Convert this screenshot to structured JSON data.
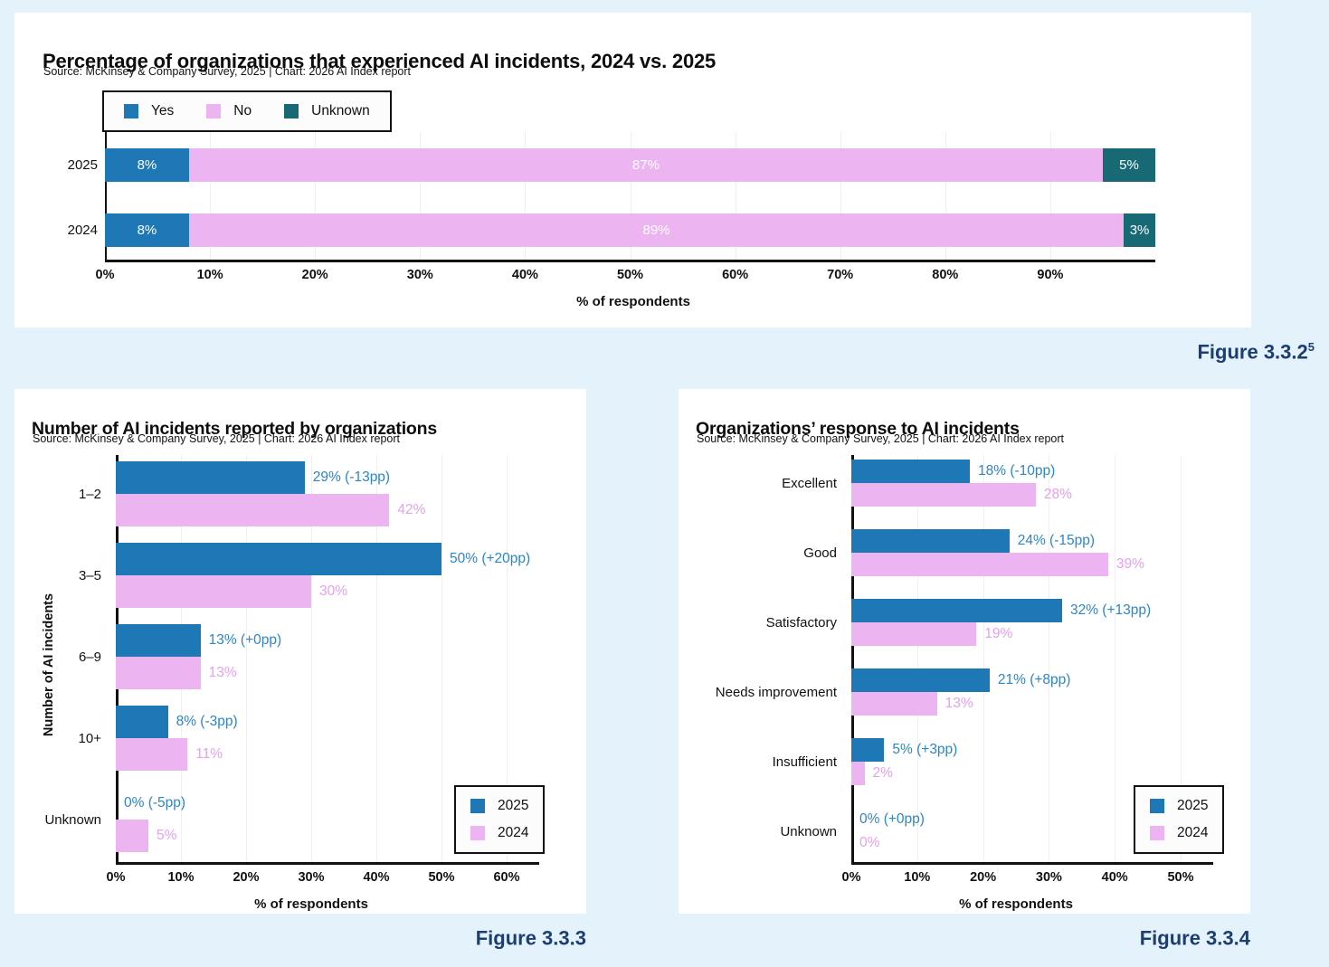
{
  "colors": {
    "blue": "#1d78b5",
    "pink": "#ecb5f2",
    "teal": "#176a74",
    "blue_label": "#2d86c7",
    "pink_label": "#e79ff0",
    "caption_navy": "#1c3e70",
    "page_background": "#e4f2fc"
  },
  "figure_captions": [
    {
      "label": "Figure 3.3.2",
      "superscript": "5"
    },
    {
      "label": "Figure 3.3.3",
      "superscript": ""
    },
    {
      "label": "Figure 3.3.4",
      "superscript": ""
    }
  ],
  "chart_data": [
    {
      "type": "bar",
      "variant": "stacked-horizontal",
      "title": "Percentage of organizations that experienced AI incidents, 2024 vs. 2025",
      "source": "Source: McKinsey & Company Survey, 2025 | Chart: 2026 AI Index report",
      "categories": [
        "2025",
        "2024"
      ],
      "series": [
        {
          "name": "Yes",
          "color": "#1d78b5",
          "values": [
            8,
            8
          ]
        },
        {
          "name": "No",
          "color": "#ecb5f2",
          "values": [
            87,
            89
          ]
        },
        {
          "name": "Unknown",
          "color": "#176a74",
          "values": [
            5,
            3
          ]
        }
      ],
      "xlabel": "% of respondents",
      "xticks": [
        0,
        10,
        20,
        30,
        40,
        50,
        60,
        70,
        80,
        90
      ],
      "xlim": [
        0,
        100
      ],
      "grid": true,
      "legend_position": "top-left"
    },
    {
      "type": "bar",
      "variant": "grouped-horizontal",
      "title": "Number of AI incidents reported by organizations",
      "source": "Source: McKinsey & Company Survey, 2025 | Chart: 2026 AI Index report",
      "ylabel": "Number of AI incidents",
      "categories": [
        "1–2",
        "3–5",
        "6–9",
        "10+",
        "Unknown"
      ],
      "series": [
        {
          "name": "2025",
          "color": "#1d78b5",
          "label_color": "#2d86c7",
          "values": [
            29,
            50,
            13,
            8,
            0
          ],
          "value_labels": [
            "29% (-13pp)",
            "50% (+20pp)",
            "13% (+0pp)",
            "8% (-3pp)",
            "0% (-5pp)"
          ]
        },
        {
          "name": "2024",
          "color": "#ecb5f2",
          "label_color": "#e79ff0",
          "values": [
            42,
            30,
            13,
            11,
            5
          ],
          "value_labels": [
            "42%",
            "30%",
            "13%",
            "11%",
            "5%"
          ]
        }
      ],
      "xlabel": "% of respondents",
      "xticks": [
        0,
        10,
        20,
        30,
        40,
        50,
        60
      ],
      "xlim": [
        0,
        65
      ],
      "grid": true,
      "legend_position": "bottom-right"
    },
    {
      "type": "bar",
      "variant": "grouped-horizontal",
      "title": "Organizations’ response to AI incidents",
      "source": "Source: McKinsey & Company Survey, 2025 | Chart: 2026 AI Index report",
      "categories": [
        "Excellent",
        "Good",
        "Satisfactory",
        "Needs improvement",
        "Insufficient",
        "Unknown"
      ],
      "series": [
        {
          "name": "2025",
          "color": "#1d78b5",
          "label_color": "#2d86c7",
          "values": [
            18,
            24,
            32,
            21,
            5,
            0
          ],
          "value_labels": [
            "18% (-10pp)",
            "24% (-15pp)",
            "32% (+13pp)",
            "21% (+8pp)",
            "5% (+3pp)",
            "0% (+0pp)"
          ]
        },
        {
          "name": "2024",
          "color": "#ecb5f2",
          "label_color": "#e79ff0",
          "values": [
            28,
            39,
            19,
            13,
            2,
            0
          ],
          "value_labels": [
            "28%",
            "39%",
            "19%",
            "13%",
            "2%",
            "0%"
          ]
        }
      ],
      "xlabel": "% of respondents",
      "xticks": [
        0,
        10,
        20,
        30,
        40,
        50
      ],
      "xlim": [
        0,
        55
      ],
      "grid": true,
      "legend_position": "bottom-right"
    }
  ]
}
